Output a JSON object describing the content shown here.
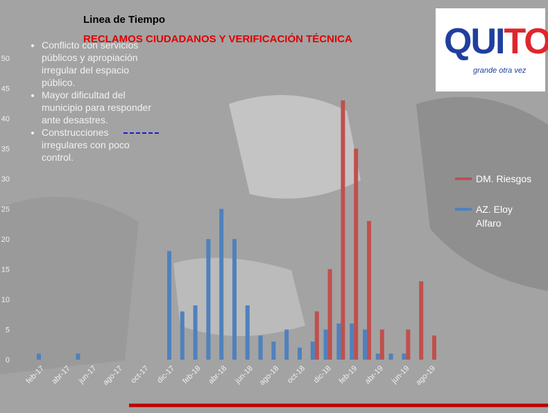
{
  "title": "Linea de Tiempo",
  "notes": [
    "Conflicto con servicios públicos y apropiación irregular del espacio público.",
    "Mayor dificultad del municipio para responder ante desastres.",
    "Construcciones irregulares con poco control."
  ],
  "chart_data": {
    "type": "bar",
    "title": "RECLAMOS CIUDADANOS Y VERIFICACIÓN TÉCNICA",
    "categories": [
      "feb-17",
      null,
      "abr-17",
      null,
      "jun-17",
      null,
      "ago-17",
      null,
      "oct-17",
      null,
      "dic-17",
      null,
      "feb-18",
      null,
      "abr-18",
      null,
      "jun-18",
      null,
      "ago-18",
      null,
      "oct-18",
      null,
      "dic-18",
      null,
      "feb-19",
      null,
      "abr-19",
      null,
      "jun-19",
      null,
      "ago-19"
    ],
    "series": [
      {
        "name": "DM. Riesgos",
        "color": "#c0504d",
        "values": [
          0,
          0,
          0,
          0,
          0,
          0,
          0,
          0,
          0,
          0,
          0,
          0,
          0,
          0,
          0,
          0,
          0,
          0,
          0,
          0,
          0,
          8,
          15,
          43,
          35,
          23,
          5,
          0,
          5,
          13,
          4
        ]
      },
      {
        "name": "AZ. Eloy Alfaro",
        "color": "#4f81bd",
        "values": [
          1,
          0,
          0,
          1,
          0,
          0,
          0,
          0,
          0,
          0,
          18,
          8,
          9,
          20,
          25,
          20,
          9,
          4,
          3,
          5,
          2,
          3,
          5,
          6,
          6,
          5,
          1,
          1,
          1,
          0,
          0
        ]
      }
    ],
    "ylim": [
      0,
      50
    ],
    "yticks": [
      0,
      5,
      10,
      15,
      20,
      25,
      30,
      35,
      40,
      45,
      50
    ],
    "grid": false
  }
}
